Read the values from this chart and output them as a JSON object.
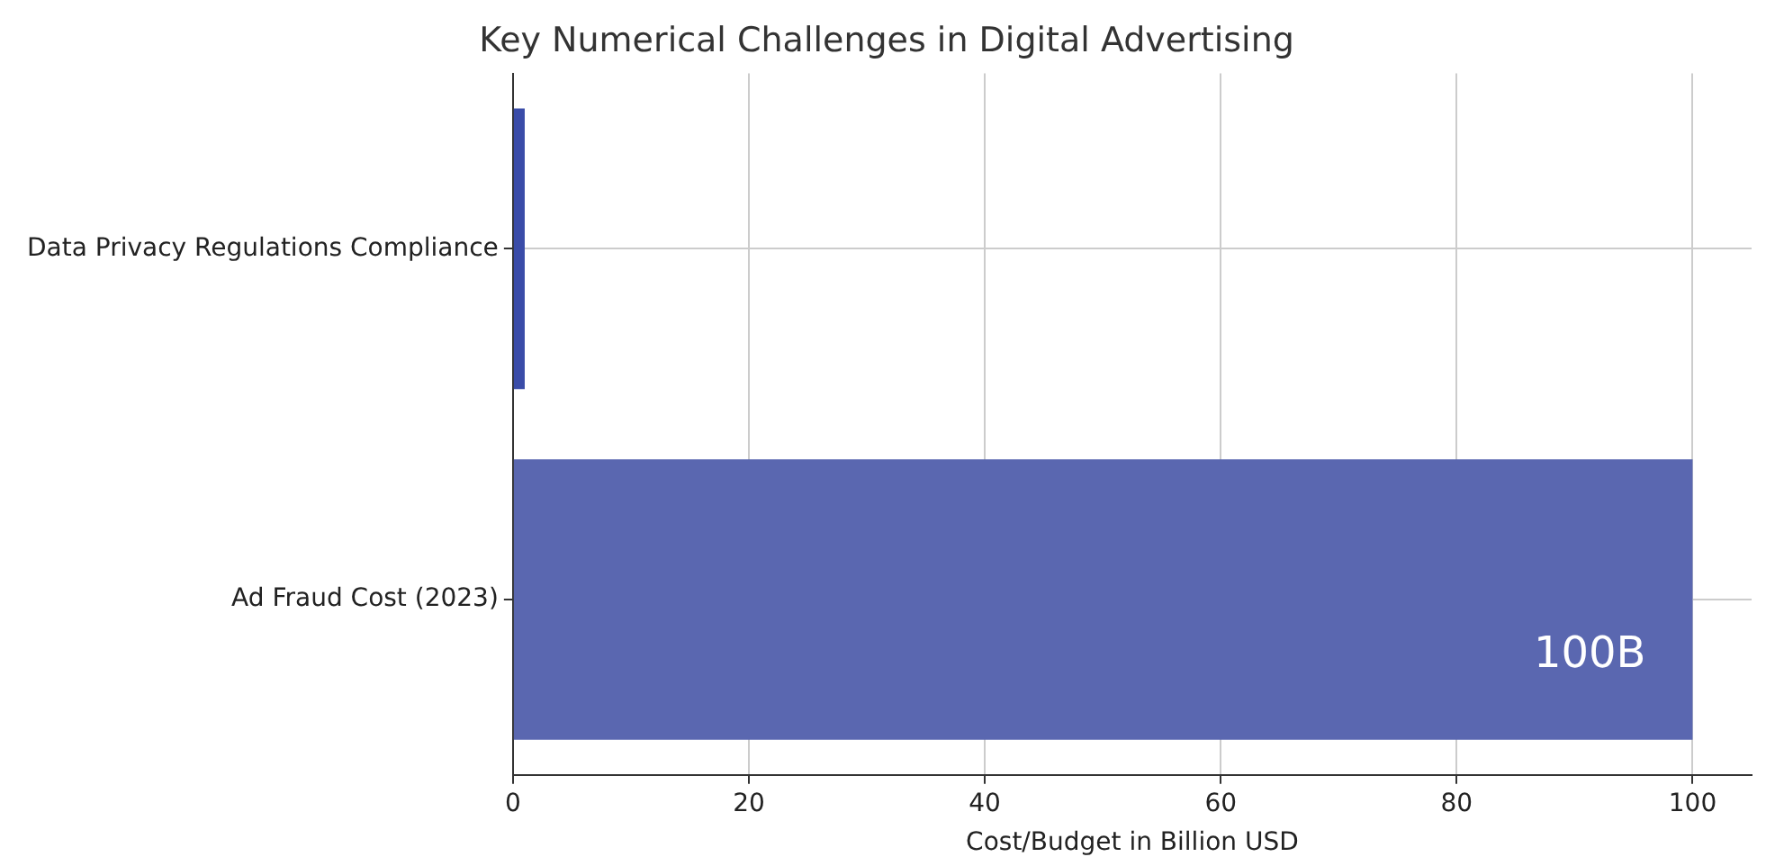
{
  "chart_data": {
    "type": "bar",
    "orientation": "horizontal",
    "title": "Key Numerical Challenges in Digital Advertising",
    "xlabel": "Cost/Budget in Billion USD",
    "categories": [
      "Data Privacy Regulations Compliance",
      "Ad Fraud Cost (2023)"
    ],
    "values": [
      1,
      100
    ],
    "colors": [
      "#3a4ca8",
      "#5a67b0"
    ],
    "value_labels": [
      null,
      "100B"
    ],
    "xlim": [
      0,
      105
    ],
    "xticks": [
      0,
      20,
      40,
      60,
      80,
      100
    ],
    "grid": true
  }
}
